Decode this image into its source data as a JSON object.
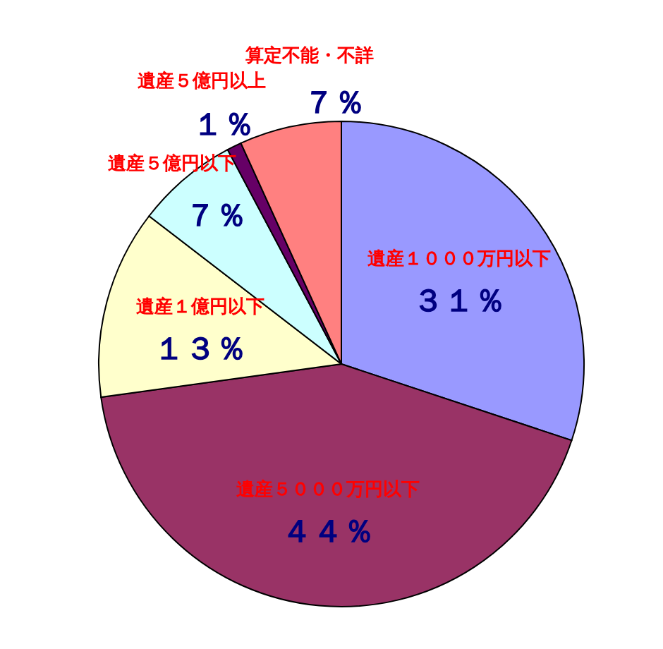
{
  "chart_data": {
    "type": "pie",
    "categories": [
      "遺産１０００万円以下",
      "遺産５０００万円以下",
      "遺産１億円以下",
      "遺産５億円以下",
      "遺産５億円以上",
      "算定不能・不詳"
    ],
    "values": [
      31,
      44,
      13,
      7,
      1,
      7
    ],
    "value_labels": [
      "３１％",
      "４４％",
      "１３％",
      "７％",
      "１％",
      "７％"
    ],
    "colors": [
      "#9999ff",
      "#993366",
      "#ffffcc",
      "#ccffff",
      "#660066",
      "#ff8080"
    ]
  }
}
